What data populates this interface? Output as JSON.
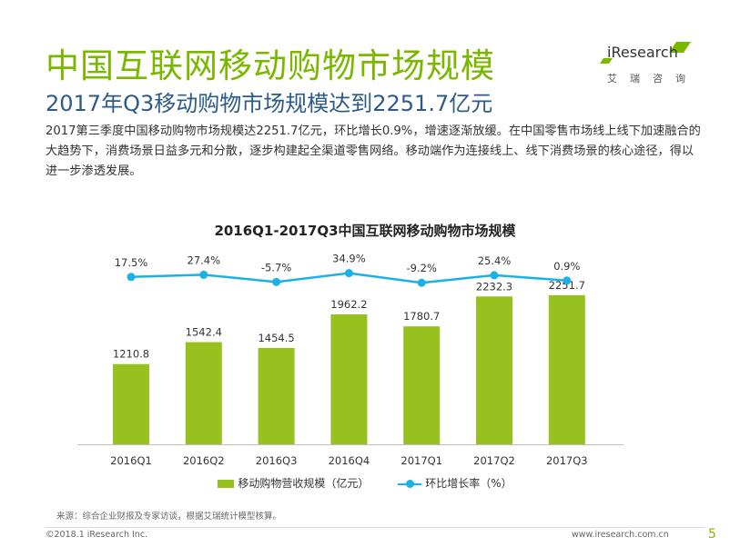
{
  "slide": {
    "title": "中国互联网移动购物市场规模",
    "subtitle": "2017年Q3移动购物市场规模达到2251.7亿元",
    "body": "2017第三季度中国移动购物市场规模达2251.7亿元，环比增长0.9%，增速逐渐放缓。在中国零售市场线上线下加速融合的大趋势下，消费场景日益多元和分散，逐步构建起全渠道零售网络。移动端作为连接线上、线下消费场景的核心途径，得以进一步渗透发展。"
  },
  "logo": {
    "text": "iResearch",
    "sub": "艾瑞咨询"
  },
  "colors": {
    "title": "#7ab800",
    "subtitle": "#2c5b8a",
    "bar": "#96c11f",
    "line": "#1ab1e8"
  },
  "chart_data": {
    "type": "bar",
    "title": "2016Q1-2017Q3中国互联网移动购物市场规模",
    "categories": [
      "2016Q1",
      "2016Q2",
      "2016Q3",
      "2016Q4",
      "2017Q1",
      "2017Q2",
      "2017Q3"
    ],
    "series": [
      {
        "name": "移动购物营收规模（亿元）",
        "type": "bar",
        "values": [
          1210.8,
          1542.4,
          1454.5,
          1962.2,
          1780.7,
          2232.3,
          2251.7
        ],
        "labels": [
          "1210.8",
          "1542.4",
          "1454.5",
          "1962.2",
          "1780.7",
          "2232.3",
          "2251.7"
        ]
      },
      {
        "name": "环比增长率（%）",
        "type": "line",
        "values": [
          17.5,
          27.4,
          -5.7,
          34.9,
          -9.2,
          25.4,
          0.9
        ],
        "labels": [
          "17.5%",
          "27.4%",
          "-5.7%",
          "34.9%",
          "-9.2%",
          "25.4%",
          "0.9%"
        ]
      }
    ],
    "legend_position": "bottom",
    "grid": false
  },
  "footer": {
    "source": "来源：综合企业财报及专家访谈，根据艾瑞统计模型核算。",
    "copyright": "©2018.1 iResearch Inc.",
    "url": "www.iresearch.com.cn",
    "page": "5"
  }
}
